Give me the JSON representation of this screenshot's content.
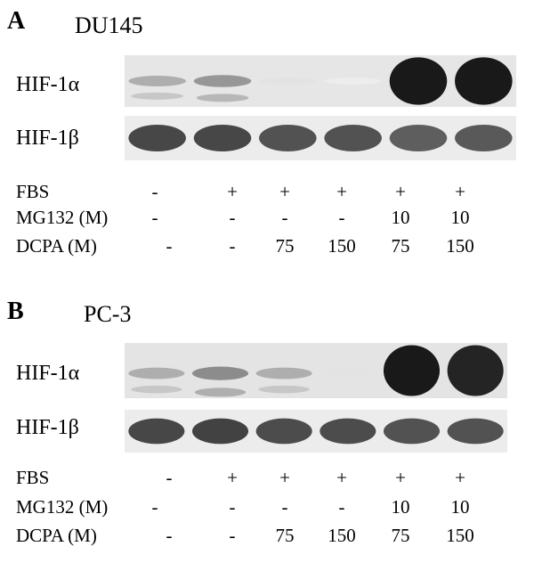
{
  "panels": [
    {
      "letter": "A",
      "cell_line": "DU145",
      "bands": [
        {
          "label": "HIF-1α",
          "intensity": [
            0.35,
            0.45,
            0.12,
            0.08,
            1.0,
            1.0
          ]
        },
        {
          "label": "HIF-1β",
          "intensity": [
            0.8,
            0.8,
            0.75,
            0.75,
            0.7,
            0.72
          ]
        }
      ],
      "conditions": [
        {
          "label": "FBS",
          "values": [
            "-",
            "+",
            "+",
            "+",
            "+",
            "+"
          ]
        },
        {
          "label": "MG132 (M)",
          "values": [
            "-",
            "-",
            "-",
            "-",
            "10",
            "10"
          ]
        },
        {
          "label": "DCPA (M)",
          "values": [
            "-",
            "-",
            "75",
            "150",
            "75",
            "150"
          ]
        }
      ]
    },
    {
      "letter": "B",
      "cell_line": "PC-3",
      "bands": [
        {
          "label": "HIF-1α",
          "intensity": [
            0.35,
            0.5,
            0.35,
            0.12,
            1.0,
            0.95
          ]
        },
        {
          "label": "HIF-1β",
          "intensity": [
            0.8,
            0.82,
            0.78,
            0.78,
            0.75,
            0.75
          ]
        }
      ],
      "conditions": [
        {
          "label": "FBS",
          "values": [
            "-",
            "+",
            "+",
            "+",
            "+",
            "+"
          ]
        },
        {
          "label": "MG132 (M)",
          "values": [
            "-",
            "-",
            "-",
            "-",
            "10",
            "10"
          ]
        },
        {
          "label": "DCPA (M)",
          "values": [
            "-",
            "-",
            "75",
            "150",
            "75",
            "150"
          ]
        }
      ]
    }
  ]
}
